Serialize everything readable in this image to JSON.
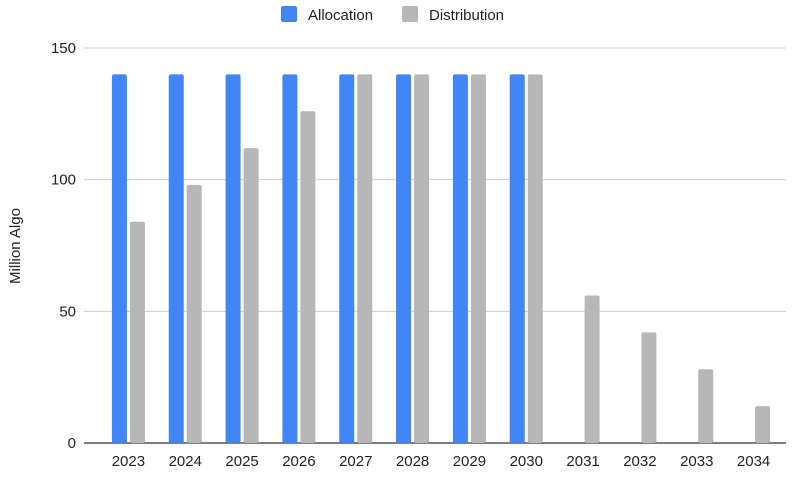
{
  "chart_data": {
    "type": "bar",
    "title": "",
    "xlabel": "",
    "ylabel": "Million Algo",
    "categories": [
      "2023",
      "2024",
      "2025",
      "2026",
      "2027",
      "2028",
      "2029",
      "2030",
      "2031",
      "2032",
      "2033",
      "2034"
    ],
    "series": [
      {
        "name": "Allocation",
        "color": "#4285f4",
        "values": [
          140,
          140,
          140,
          140,
          140,
          140,
          140,
          140,
          0,
          0,
          0,
          0
        ]
      },
      {
        "name": "Distribution",
        "color": "#b7b7b7",
        "values": [
          84,
          98,
          112,
          126,
          140,
          140,
          140,
          140,
          56,
          42,
          28,
          14
        ]
      }
    ],
    "ylim": [
      0,
      150
    ],
    "yticks": [
      0,
      50,
      100,
      150
    ],
    "grid": true,
    "legend_position": "top-center"
  }
}
